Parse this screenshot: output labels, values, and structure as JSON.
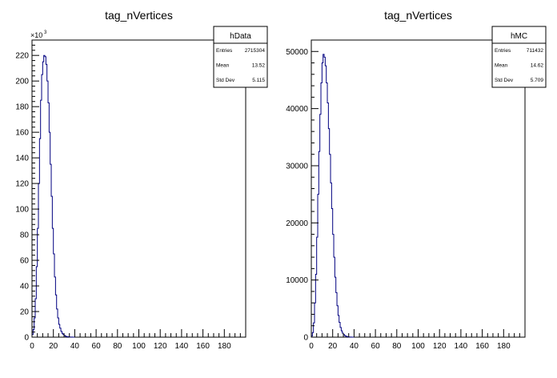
{
  "chart_data": [
    {
      "type": "bar",
      "title": "tag_nVertices",
      "xlim": [
        0,
        200
      ],
      "ylim": [
        0,
        232
      ],
      "y_multiplier_label": "×10",
      "y_multiplier_exponent": "3",
      "x_ticks": [
        0,
        20,
        40,
        60,
        80,
        100,
        120,
        140,
        160,
        180
      ],
      "y_ticks": [
        0,
        20,
        40,
        60,
        80,
        100,
        120,
        140,
        160,
        180,
        200,
        220
      ],
      "bin_width": 1,
      "x": [
        1,
        2,
        3,
        4,
        5,
        6,
        7,
        8,
        9,
        10,
        11,
        12,
        13,
        14,
        15,
        16,
        17,
        18,
        19,
        20,
        21,
        22,
        23,
        24,
        25,
        26,
        27,
        28,
        29,
        30,
        31,
        32,
        33,
        34,
        35,
        36,
        37,
        38,
        39,
        40
      ],
      "values": [
        2,
        6,
        15,
        30,
        55,
        85,
        120,
        155,
        185,
        205,
        215,
        220,
        219,
        213,
        200,
        183,
        160,
        135,
        110,
        85,
        65,
        47,
        33,
        22,
        15,
        10,
        7,
        4.5,
        3,
        2,
        1.3,
        0.8,
        0.5,
        0.3,
        0.2,
        0.1,
        0.07,
        0.05,
        0.03,
        0.02
      ],
      "legend_placement": "top-right",
      "stats": {
        "name": "hData",
        "rows": [
          {
            "label": "Entries",
            "value": "2715304"
          },
          {
            "label": "Mean",
            "value": "13.52"
          },
          {
            "label": "Std Dev",
            "value": "5.115"
          }
        ]
      }
    },
    {
      "type": "bar",
      "title": "tag_nVertices",
      "xlim": [
        0,
        200
      ],
      "ylim": [
        0,
        52000
      ],
      "x_ticks": [
        0,
        20,
        40,
        60,
        80,
        100,
        120,
        140,
        160,
        180
      ],
      "y_ticks": [
        0,
        10000,
        20000,
        30000,
        40000,
        50000
      ],
      "bin_width": 1,
      "x": [
        1,
        2,
        3,
        4,
        5,
        6,
        7,
        8,
        9,
        10,
        11,
        12,
        13,
        14,
        15,
        16,
        17,
        18,
        19,
        20,
        21,
        22,
        23,
        24,
        25,
        26,
        27,
        28,
        29,
        30,
        31,
        32,
        33,
        34,
        35,
        36,
        37,
        38,
        39,
        40
      ],
      "values": [
        200,
        800,
        2500,
        6000,
        11000,
        17500,
        25000,
        32500,
        39000,
        44500,
        48000,
        49500,
        49000,
        47500,
        44500,
        41000,
        36500,
        32000,
        27000,
        22500,
        18000,
        14000,
        10500,
        7800,
        5500,
        3800,
        2600,
        1700,
        1100,
        700,
        450,
        280,
        170,
        100,
        60,
        35,
        20,
        10,
        5,
        2
      ],
      "legend_placement": "top-right",
      "stats": {
        "name": "hMC",
        "rows": [
          {
            "label": "Entries",
            "value": "711432"
          },
          {
            "label": "Mean",
            "value": "14.62"
          },
          {
            "label": "Std Dev",
            "value": "5.709"
          }
        ]
      }
    }
  ]
}
